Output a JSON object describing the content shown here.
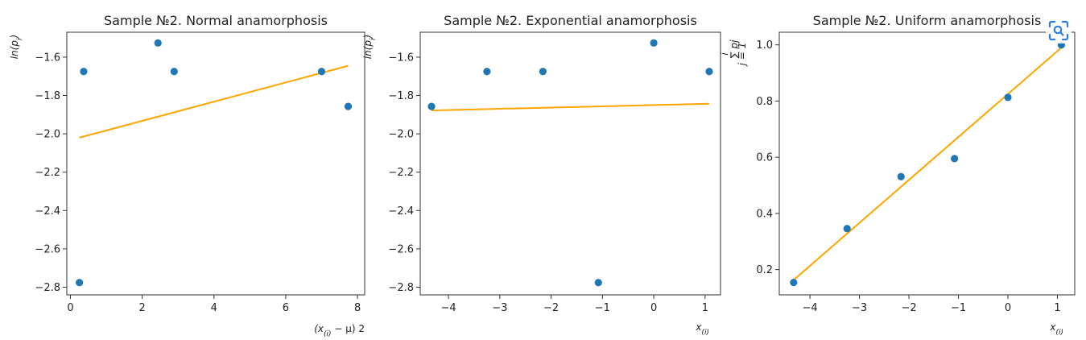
{
  "chart_data": [
    {
      "type": "scatter",
      "title": "Sample №2. Normal anamorphosis",
      "xlabel": "(x(i) − μ) 2",
      "ylabel": "ln(pi)",
      "xlim": [
        -0.1,
        8.2
      ],
      "ylim": [
        -2.84,
        -1.47
      ],
      "xticks": [
        0,
        2,
        4,
        6,
        8
      ],
      "yticks": [
        -1.6,
        -1.8,
        -2.0,
        -2.2,
        -2.4,
        -2.6,
        -2.8
      ],
      "xtick_labels": [
        "0",
        "2",
        "4",
        "6",
        "8"
      ],
      "ytick_labels": [
        "−1.6",
        "−1.8",
        "−2.0",
        "−2.2",
        "−2.4",
        "−2.6",
        "−2.8"
      ],
      "points": [
        {
          "x": 0.37,
          "y": -1.675
        },
        {
          "x": 2.44,
          "y": -1.526
        },
        {
          "x": 2.89,
          "y": -1.675
        },
        {
          "x": 7.0,
          "y": -1.675
        },
        {
          "x": 7.74,
          "y": -1.857
        },
        {
          "x": 0.25,
          "y": -2.776
        }
      ],
      "fit_line": {
        "x": [
          0.25,
          7.74
        ],
        "y": [
          -2.02,
          -1.645
        ]
      },
      "grid": false
    },
    {
      "type": "scatter",
      "title": "Sample №2. Exponential anamorphosis",
      "xlabel": "x(i)",
      "ylabel": "ln(pi)",
      "xlim": [
        -4.55,
        1.3
      ],
      "ylim": [
        -2.84,
        -1.47
      ],
      "xticks": [
        -4,
        -3,
        -2,
        -1,
        0,
        1
      ],
      "yticks": [
        -1.6,
        -1.8,
        -2.0,
        -2.2,
        -2.4,
        -2.6,
        -2.8
      ],
      "xtick_labels": [
        "−4",
        "−3",
        "−2",
        "−1",
        "0",
        "1"
      ],
      "ytick_labels": [
        "−1.6",
        "−1.8",
        "−2.0",
        "−2.2",
        "−2.4",
        "−2.6",
        "−2.8"
      ],
      "points": [
        {
          "x": -4.33,
          "y": -1.857
        },
        {
          "x": -3.25,
          "y": -1.675
        },
        {
          "x": -2.16,
          "y": -1.675
        },
        {
          "x": -1.08,
          "y": -2.776
        },
        {
          "x": 0.0,
          "y": -1.526
        },
        {
          "x": 1.08,
          "y": -1.675
        }
      ],
      "fit_line": {
        "x": [
          -4.33,
          1.08
        ],
        "y": [
          -1.878,
          -1.843
        ]
      },
      "grid": false
    },
    {
      "type": "scatter",
      "title": "Sample №2. Uniform anamorphosis",
      "xlabel": "x(i)",
      "ylabel": "∑ pj",
      "ylabel_sum_top": "i",
      "ylabel_sum_bottom": "j = 1",
      "xlim": [
        -4.62,
        1.35
      ],
      "ylim": [
        0.11,
        1.045
      ],
      "xticks": [
        -4,
        -3,
        -2,
        -1,
        0,
        1
      ],
      "yticks": [
        0.2,
        0.4,
        0.6,
        0.8,
        1.0
      ],
      "xtick_labels": [
        "−4",
        "−3",
        "−2",
        "−1",
        "0",
        "1"
      ],
      "ytick_labels": [
        "0.2",
        "0.4",
        "0.6",
        "0.8",
        "1.0"
      ],
      "points": [
        {
          "x": -4.33,
          "y": 0.154
        },
        {
          "x": -3.25,
          "y": 0.346
        },
        {
          "x": -2.16,
          "y": 0.531
        },
        {
          "x": -1.08,
          "y": 0.595
        },
        {
          "x": 0.0,
          "y": 0.813
        },
        {
          "x": 1.08,
          "y": 1.0
        }
      ],
      "fit_line": {
        "x": [
          -4.33,
          1.08
        ],
        "y": [
          0.163,
          0.99
        ]
      },
      "grid": false
    }
  ],
  "colors": {
    "points": "#1f77b4",
    "fit_line": "#ffa500",
    "axes": "#333333",
    "lens_icon": "#2a7de1"
  },
  "icons": {
    "lens": "visual-search-icon"
  }
}
